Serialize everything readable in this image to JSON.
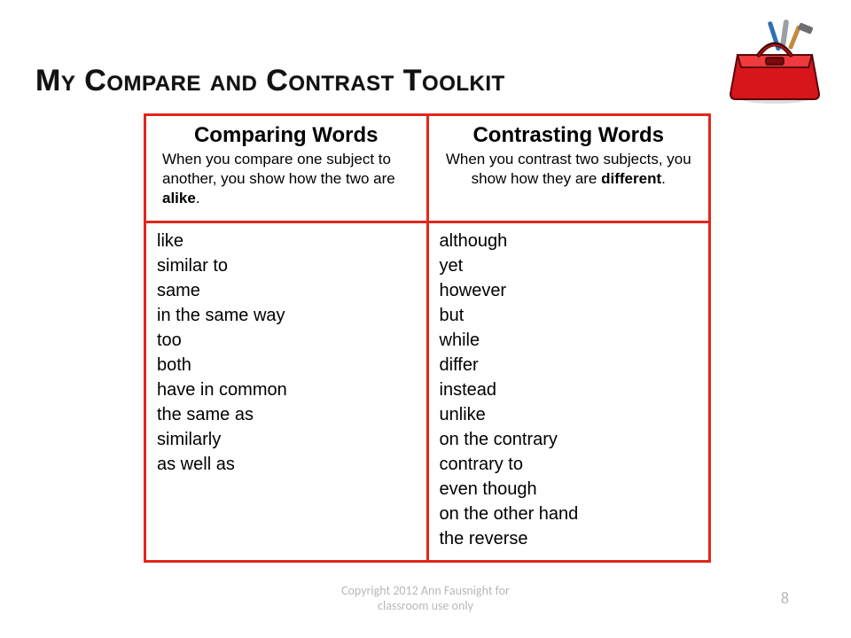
{
  "title": "My Compare and Contrast Toolkit",
  "border_color": "#e1261c",
  "columns": [
    {
      "header": "Comparing Words",
      "sub_html": "When you compare one subject to another, you show how the two are <b>alike</b>.",
      "sub_align": "left",
      "words": [
        "like",
        "similar to",
        "same",
        "in the same way",
        "too",
        "both",
        "have in common",
        "the same as",
        "similarly",
        "as well as"
      ]
    },
    {
      "header": "Contrasting Words",
      "sub_html": "When you contrast two subjects, you show how they are <b>different</b>.",
      "sub_align": "center",
      "words": [
        "although",
        "yet",
        "however",
        "but",
        "while",
        "differ",
        "instead",
        "unlike",
        "on the contrary",
        "contrary to",
        "even though",
        "on the other hand",
        "the reverse"
      ]
    }
  ],
  "footer_line1": "Copyright 2012  Ann Fausnight for",
  "footer_line2": "classroom use only",
  "page_number": "8",
  "toolbox": {
    "box_color": "#d8151a",
    "box_shadow": "#8a0c0f",
    "handle_color": "#7a0a0d",
    "tool_colors": {
      "screwdriver": "#2e6fb5",
      "wrench": "#9aa0a6",
      "hammer_head": "#6b6f74",
      "hammer_handle": "#c58a3d"
    }
  }
}
